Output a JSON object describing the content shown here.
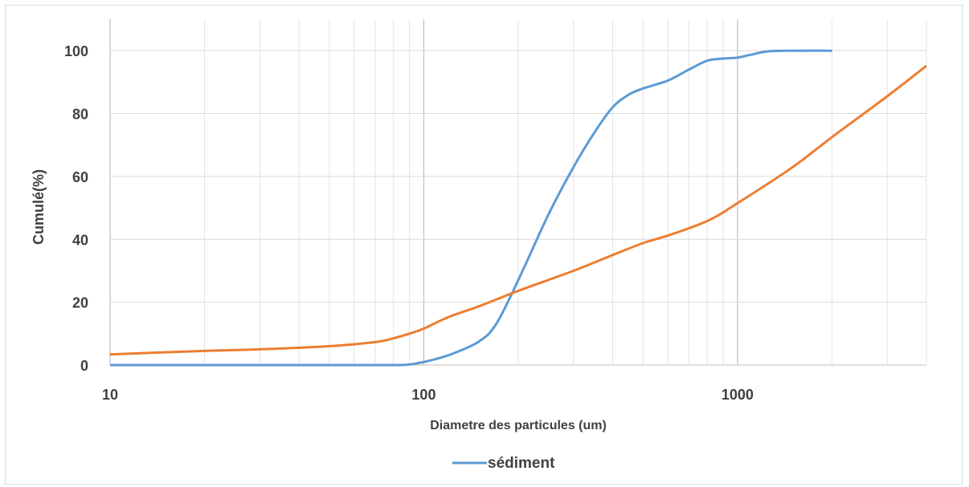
{
  "chart_data": {
    "type": "line",
    "x_scale": "log",
    "xlim": [
      10,
      4000
    ],
    "ylim": [
      0,
      110
    ],
    "xlabel": "Diametre des particules (um)",
    "ylabel": "Cumulé(%)",
    "x_tick_labels": [
      "10",
      "100",
      "1000"
    ],
    "y_tick_labels": [
      "0",
      "20",
      "40",
      "60",
      "80",
      "100"
    ],
    "y_ticks": [
      0,
      20,
      40,
      60,
      80,
      100
    ],
    "grid": true,
    "legend_position": "bottom",
    "series": [
      {
        "name": "sédiment",
        "color": "#5b9bd5",
        "x": [
          10,
          20,
          50,
          80,
          90,
          100,
          110,
          125,
          150,
          170,
          200,
          250,
          300,
          350,
          400,
          450,
          500,
          600,
          700,
          800,
          900,
          1000,
          1100,
          1250,
          1500,
          2000
        ],
        "y": [
          0,
          0,
          0,
          0,
          0.2,
          1.0,
          2.0,
          3.8,
          7.5,
          13,
          27,
          48,
          63,
          74,
          82,
          86,
          88,
          90.5,
          94,
          96.8,
          97.5,
          97.8,
          98.7,
          99.8,
          100,
          100
        ]
      },
      {
        "name": "",
        "color": "#ed7d31",
        "x": [
          10,
          20,
          30,
          50,
          70,
          80,
          90,
          100,
          120,
          150,
          200,
          300,
          400,
          500,
          600,
          800,
          1000,
          1500,
          2000,
          3000,
          4000
        ],
        "y": [
          3.4,
          4.5,
          5.0,
          6.0,
          7.3,
          8.5,
          10.0,
          11.6,
          15.3,
          18.7,
          23.6,
          30.0,
          35.0,
          38.8,
          41.2,
          45.8,
          51.5,
          63.0,
          72.5,
          85.5,
          95.2
        ]
      }
    ]
  }
}
